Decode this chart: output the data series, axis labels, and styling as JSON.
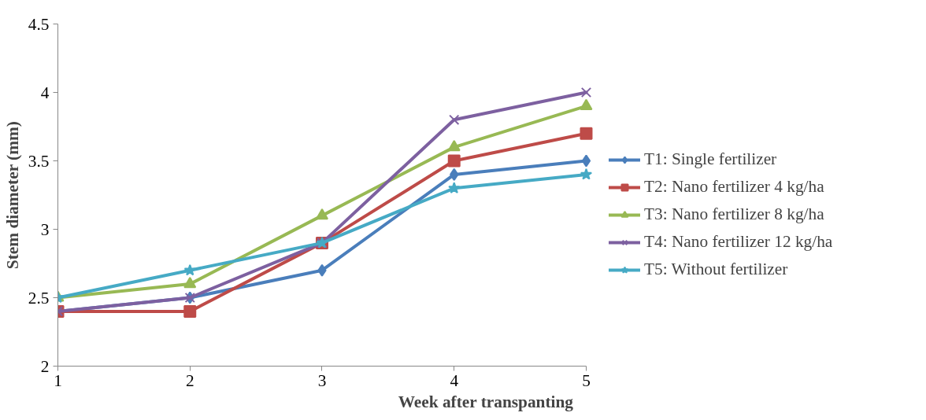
{
  "chart_data": {
    "type": "line",
    "xlabel": "Week after transpanting",
    "ylabel": "Stem diameter (mm)",
    "x": [
      1,
      2,
      3,
      4,
      5
    ],
    "xlim": [
      1,
      5
    ],
    "xticks": [
      1,
      2,
      3,
      4,
      5
    ],
    "ylim": [
      2,
      4.5
    ],
    "yticks": [
      2,
      2.5,
      3,
      3.5,
      4,
      4.5
    ],
    "grid": false,
    "legend": "right",
    "series": [
      {
        "name": "T1: Single fertilizer",
        "color": "#4a7ebb",
        "marker": "diamond",
        "values": [
          2.4,
          2.5,
          2.7,
          3.4,
          3.5
        ]
      },
      {
        "name": "T2: Nano fertilizer 4 kg/ha",
        "color": "#be4b48",
        "marker": "square",
        "values": [
          2.4,
          2.4,
          2.9,
          3.5,
          3.7
        ]
      },
      {
        "name": "T3: Nano fertilizer 8 kg/ha",
        "color": "#98b954",
        "marker": "triangle",
        "values": [
          2.5,
          2.6,
          3.1,
          3.6,
          3.9
        ]
      },
      {
        "name": "T4: Nano fertilizer 12 kg/ha",
        "color": "#7d60a0",
        "marker": "cross",
        "values": [
          2.4,
          2.5,
          2.9,
          3.8,
          4.0
        ]
      },
      {
        "name": "T5: Without fertilizer",
        "color": "#46aac5",
        "marker": "star",
        "values": [
          2.5,
          2.7,
          2.9,
          3.3,
          3.4
        ]
      }
    ]
  }
}
